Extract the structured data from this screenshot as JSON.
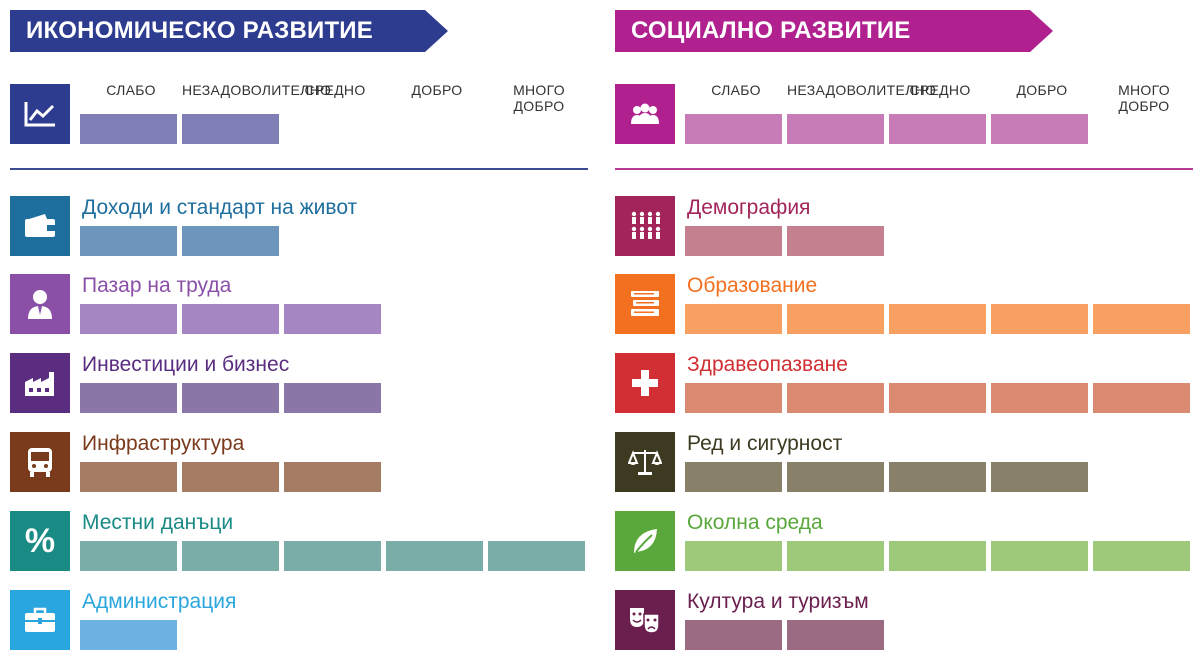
{
  "scale": [
    "СЛАБО",
    "НЕЗАДОВОЛИТЕЛНО",
    "СРЕДНО",
    "ДОБРО",
    "МНОГО ДОБРО"
  ],
  "economic": {
    "title": "ИКОНОМИЧЕСКО РАЗВИТИЕ",
    "color": "#2e3c8f",
    "divider_color": "#3d4a94",
    "overall": {
      "icon": "chart-icon",
      "icon_color": "#2e3c8f",
      "bar_color": "#7f7fb6",
      "level": 2
    },
    "rows": [
      {
        "label": "Доходи и стандарт на живот",
        "icon": "wallet-icon",
        "icon_color": "#1e6e9e",
        "text_color": "#1e6e9e",
        "bar_color": "#6e96bc",
        "level": 2
      },
      {
        "label": "Пазар на труда",
        "icon": "worker-icon",
        "icon_color": "#8a50a8",
        "text_color": "#8a50a8",
        "bar_color": "#a585c2",
        "level": 3
      },
      {
        "label": "Инвестиции и бизнес",
        "icon": "factory-icon",
        "icon_color": "#5a2d80",
        "text_color": "#5a2d80",
        "bar_color": "#8b76a8",
        "level": 3
      },
      {
        "label": "Инфраструктура",
        "icon": "bus-icon",
        "icon_color": "#7a3a1c",
        "text_color": "#7a3a1c",
        "bar_color": "#a57b63",
        "level": 3
      },
      {
        "label": "Местни данъци",
        "icon": "percent-icon",
        "icon_color": "#1a8a85",
        "text_color": "#1a8a85",
        "bar_color": "#7aaca8",
        "level": 5
      },
      {
        "label": "Администрация",
        "icon": "briefcase-icon",
        "icon_color": "#2aa6df",
        "text_color": "#2aa6df",
        "bar_color": "#6cb3e4",
        "level": 1
      }
    ]
  },
  "social": {
    "title": "СОЦИАЛНО РАЗВИТИЕ",
    "color": "#b0208e",
    "divider_color": "#b43a92",
    "overall": {
      "icon": "people-icon",
      "icon_color": "#b0208e",
      "bar_color": "#c87cb7",
      "level": 4
    },
    "rows": [
      {
        "label": "Демография",
        "icon": "population-icon",
        "icon_color": "#a3245a",
        "text_color": "#a3245a",
        "bar_color": "#c4808f",
        "level": 2
      },
      {
        "label": "Образование",
        "icon": "books-icon",
        "icon_color": "#f37021",
        "text_color": "#f37021",
        "bar_color": "#f7a062",
        "level": 5
      },
      {
        "label": "Здравеопазване",
        "icon": "health-cross-icon",
        "icon_color": "#d12f33",
        "text_color": "#d12f33",
        "bar_color": "#db8a72",
        "level": 5
      },
      {
        "label": "Ред и сигурност",
        "icon": "scales-icon",
        "icon_color": "#3e3a22",
        "text_color": "#3e3a22",
        "bar_color": "#888069",
        "level": 4
      },
      {
        "label": "Околна среда",
        "icon": "leaf-icon",
        "icon_color": "#5aa83c",
        "text_color": "#5aa83c",
        "bar_color": "#9ec97b",
        "level": 5
      },
      {
        "label": "Култура и туризъм",
        "icon": "theater-masks-icon",
        "icon_color": "#6a1f4e",
        "text_color": "#6a1f4e",
        "bar_color": "#9a6b82",
        "level": 2
      }
    ]
  }
}
